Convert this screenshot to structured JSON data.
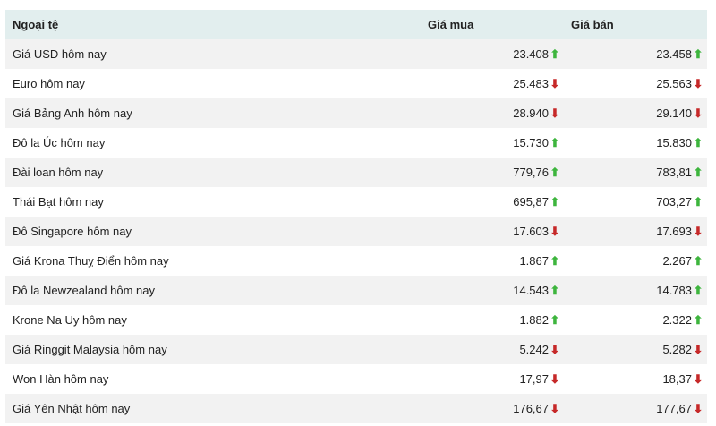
{
  "header": {
    "currency": "Ngoại tệ",
    "buy": "Giá mua",
    "sell": "Giá bán"
  },
  "colors": {
    "up": "#3db53d",
    "down": "#c62828",
    "header_bg": "#e2eeee"
  },
  "rows": [
    {
      "name": "Giá USD hôm nay",
      "buy": "23.408",
      "buy_trend": "up",
      "sell": "23.458",
      "sell_trend": "up"
    },
    {
      "name": "Euro hôm nay",
      "buy": "25.483",
      "buy_trend": "down",
      "sell": "25.563",
      "sell_trend": "down"
    },
    {
      "name": "Giá Bảng Anh hôm nay",
      "buy": "28.940",
      "buy_trend": "down",
      "sell": "29.140",
      "sell_trend": "down"
    },
    {
      "name": "Đô la Úc hôm nay",
      "buy": "15.730",
      "buy_trend": "up",
      "sell": "15.830",
      "sell_trend": "up"
    },
    {
      "name": "Đài loan hôm nay",
      "buy": "779,76",
      "buy_trend": "up",
      "sell": "783,81",
      "sell_trend": "up"
    },
    {
      "name": "Thái Bạt hôm nay",
      "buy": "695,87",
      "buy_trend": "up",
      "sell": "703,27",
      "sell_trend": "up"
    },
    {
      "name": "Đô Singapore hôm nay",
      "buy": "17.603",
      "buy_trend": "down",
      "sell": "17.693",
      "sell_trend": "down"
    },
    {
      "name": "Giá Krona Thuỵ Điển hôm nay",
      "buy": "1.867",
      "buy_trend": "up",
      "sell": "2.267",
      "sell_trend": "up"
    },
    {
      "name": "Đô la Newzealand hôm nay",
      "buy": "14.543",
      "buy_trend": "up",
      "sell": "14.783",
      "sell_trend": "up"
    },
    {
      "name": "Krone Na Uy hôm nay",
      "buy": "1.882",
      "buy_trend": "up",
      "sell": "2.322",
      "sell_trend": "up"
    },
    {
      "name": "Giá Ringgit Malaysia hôm nay",
      "buy": "5.242",
      "buy_trend": "down",
      "sell": "5.282",
      "sell_trend": "down"
    },
    {
      "name": "Won Hàn hôm nay",
      "buy": "17,97",
      "buy_trend": "down",
      "sell": "18,37",
      "sell_trend": "down"
    },
    {
      "name": "Giá Yên Nhật hôm nay",
      "buy": "176,67",
      "buy_trend": "down",
      "sell": "177,67",
      "sell_trend": "down"
    }
  ]
}
